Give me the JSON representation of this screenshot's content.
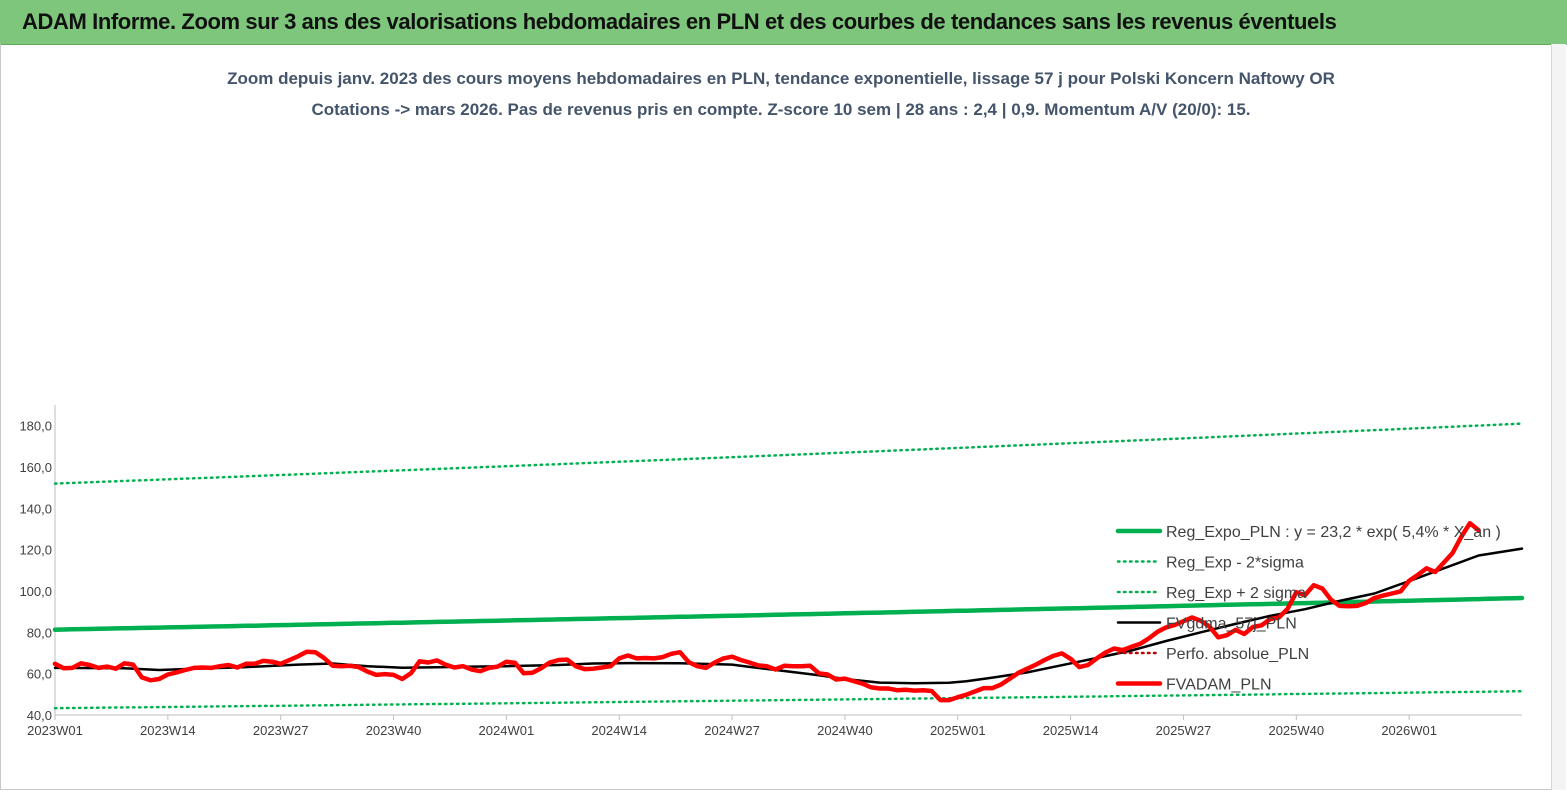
{
  "header": {
    "title": "ADAM Informe. Zoom sur 3 ans des valorisations hebdomadaires en PLN et des courbes de tendances sans les revenus éventuels"
  },
  "chart_data": {
    "type": "line",
    "title": "Zoom depuis janv. 2023 des cours moyens hebdomadaires en PLN,  tendance exponentielle, lissage 57 j pour Polski Koncern Naftowy OR",
    "subtitle": "Cotations -> mars 2026. Pas de revenus pris en compte. Z-score 10 sem  | 28 ans : 2,4  | 0,9. Momentum A/V (20/0): 15.",
    "xlabel": "",
    "ylabel": "",
    "ylim": [
      40,
      190
    ],
    "yticks": [
      40,
      60,
      80,
      100,
      120,
      140,
      160,
      180
    ],
    "ytick_labels": [
      "40,0",
      "60,0",
      "80,0",
      "100,0",
      "120,0",
      "140,0",
      "160,0",
      "180,0"
    ],
    "x_tick_labels": [
      "2023W01",
      "2023W14",
      "2023W27",
      "2023W40",
      "2024W01",
      "2024W14",
      "2024W27",
      "2024W40",
      "2025W01",
      "2025W14",
      "2025W27",
      "2025W40",
      "2026W01"
    ],
    "x_tick_week_index": [
      0,
      13,
      26,
      39,
      52,
      65,
      78,
      91,
      104,
      117,
      130,
      143,
      156
    ],
    "x_weeks_total": 169,
    "grid": false,
    "legend_position": "right",
    "series": [
      {
        "name": "Reg_Expo_PLN : y = 23,2 * exp( 5,4% *  X_an )",
        "color": "#00b050",
        "style": "solid-thick",
        "start": 81.3,
        "end": 96.6
      },
      {
        "name": "Reg_Exp - 2*sigma",
        "color": "#00b050",
        "style": "dotted",
        "start": 43.3,
        "end": 51.5
      },
      {
        "name": "Reg_Exp + 2 sigma",
        "color": "#00b050",
        "style": "dotted",
        "start": 152.0,
        "end": 181.0
      },
      {
        "name": "FVgdma_57j_PLN",
        "color": "#000000",
        "style": "solid",
        "points": [
          [
            0,
            62.8
          ],
          [
            8,
            62.6
          ],
          [
            12,
            61.8
          ],
          [
            16,
            62.4
          ],
          [
            22,
            63.2
          ],
          [
            28,
            64.4
          ],
          [
            32,
            64.9
          ],
          [
            36,
            63.6
          ],
          [
            40,
            62.9
          ],
          [
            44,
            63.1
          ],
          [
            48,
            63.4
          ],
          [
            52,
            63.6
          ],
          [
            58,
            64.2
          ],
          [
            62,
            64.9
          ],
          [
            66,
            65.1
          ],
          [
            72,
            65.0
          ],
          [
            78,
            64.4
          ],
          [
            80,
            63.3
          ],
          [
            84,
            61.3
          ],
          [
            88,
            59.2
          ],
          [
            91,
            57.4
          ],
          [
            95,
            55.7
          ],
          [
            99,
            55.4
          ],
          [
            103,
            55.6
          ],
          [
            105,
            56.3
          ],
          [
            108,
            58.1
          ],
          [
            112,
            60.6
          ],
          [
            116,
            64.1
          ],
          [
            120,
            67.6
          ],
          [
            124,
            71.2
          ],
          [
            128,
            75.8
          ],
          [
            132,
            80.0
          ],
          [
            136,
            84.1
          ],
          [
            140,
            88.0
          ],
          [
            144,
            91.2
          ],
          [
            148,
            95.2
          ],
          [
            152,
            98.8
          ],
          [
            156,
            104.8
          ],
          [
            160,
            111.0
          ],
          [
            164,
            117.2
          ],
          [
            169,
            120.5
          ]
        ]
      },
      {
        "name": "Perfo. absolue_PLN",
        "color": "#c00000",
        "style": "dotted",
        "points": []
      },
      {
        "name": "FVADAM_PLN",
        "color": "#ff0000",
        "style": "solid-thick",
        "points": [
          [
            0,
            64.8
          ],
          [
            1,
            62.6
          ],
          [
            2,
            62.8
          ],
          [
            3,
            65.0
          ],
          [
            4,
            64.2
          ],
          [
            5,
            62.8
          ],
          [
            6,
            63.4
          ],
          [
            7,
            62.4
          ],
          [
            8,
            65.0
          ],
          [
            9,
            64.4
          ],
          [
            10,
            58.2
          ],
          [
            11,
            56.8
          ],
          [
            12,
            57.4
          ],
          [
            13,
            59.6
          ],
          [
            14,
            60.6
          ],
          [
            15,
            61.8
          ],
          [
            16,
            62.8
          ],
          [
            17,
            63.0
          ],
          [
            18,
            62.8
          ],
          [
            19,
            63.6
          ],
          [
            20,
            64.2
          ],
          [
            21,
            63.0
          ],
          [
            22,
            64.8
          ],
          [
            23,
            64.8
          ],
          [
            24,
            66.2
          ],
          [
            25,
            65.8
          ],
          [
            26,
            64.8
          ],
          [
            27,
            66.6
          ],
          [
            28,
            68.4
          ],
          [
            29,
            70.6
          ],
          [
            30,
            70.4
          ],
          [
            31,
            67.6
          ],
          [
            32,
            63.8
          ],
          [
            33,
            63.6
          ],
          [
            34,
            63.8
          ],
          [
            35,
            63.2
          ],
          [
            36,
            61.0
          ],
          [
            37,
            59.4
          ],
          [
            38,
            59.8
          ],
          [
            39,
            59.4
          ],
          [
            40,
            57.4
          ],
          [
            41,
            60.2
          ],
          [
            42,
            66.0
          ],
          [
            43,
            65.4
          ],
          [
            44,
            66.4
          ],
          [
            45,
            64.4
          ],
          [
            46,
            63.0
          ],
          [
            47,
            63.6
          ],
          [
            48,
            62.0
          ],
          [
            49,
            61.2
          ],
          [
            50,
            62.8
          ],
          [
            51,
            63.4
          ],
          [
            52,
            65.8
          ],
          [
            53,
            65.2
          ],
          [
            54,
            60.2
          ],
          [
            55,
            60.4
          ],
          [
            56,
            62.6
          ],
          [
            57,
            65.4
          ],
          [
            58,
            66.6
          ],
          [
            59,
            66.8
          ],
          [
            60,
            63.6
          ],
          [
            61,
            62.2
          ],
          [
            62,
            62.4
          ],
          [
            63,
            63.0
          ],
          [
            64,
            63.6
          ],
          [
            65,
            67.4
          ],
          [
            66,
            68.8
          ],
          [
            67,
            67.4
          ],
          [
            68,
            67.6
          ],
          [
            69,
            67.4
          ],
          [
            70,
            68.0
          ],
          [
            71,
            69.6
          ],
          [
            72,
            70.4
          ],
          [
            73,
            65.6
          ],
          [
            74,
            63.6
          ],
          [
            75,
            62.8
          ],
          [
            76,
            65.4
          ],
          [
            77,
            67.4
          ],
          [
            78,
            68.2
          ],
          [
            79,
            66.6
          ],
          [
            80,
            65.4
          ],
          [
            81,
            64.0
          ],
          [
            82,
            63.6
          ],
          [
            83,
            62.0
          ],
          [
            84,
            63.8
          ],
          [
            85,
            63.6
          ],
          [
            86,
            63.6
          ],
          [
            87,
            63.8
          ],
          [
            88,
            60.2
          ],
          [
            89,
            59.6
          ],
          [
            90,
            57.2
          ],
          [
            91,
            57.6
          ],
          [
            92,
            56.4
          ],
          [
            93,
            55.2
          ],
          [
            94,
            53.4
          ],
          [
            95,
            52.8
          ],
          [
            96,
            52.8
          ],
          [
            97,
            52.0
          ],
          [
            98,
            52.2
          ],
          [
            99,
            51.8
          ],
          [
            100,
            52.0
          ],
          [
            101,
            51.6
          ],
          [
            102,
            47.2
          ],
          [
            103,
            47.2
          ],
          [
            104,
            48.6
          ],
          [
            105,
            49.8
          ],
          [
            106,
            51.4
          ],
          [
            107,
            53.0
          ],
          [
            108,
            53.0
          ],
          [
            109,
            54.8
          ],
          [
            110,
            57.6
          ],
          [
            111,
            60.4
          ],
          [
            112,
            62.4
          ],
          [
            113,
            64.4
          ],
          [
            114,
            66.6
          ],
          [
            115,
            68.6
          ],
          [
            116,
            69.8
          ],
          [
            117,
            67.2
          ],
          [
            118,
            63.2
          ],
          [
            119,
            64.2
          ],
          [
            120,
            67.4
          ],
          [
            121,
            70.2
          ],
          [
            122,
            72.2
          ],
          [
            123,
            71.4
          ],
          [
            124,
            73.0
          ],
          [
            125,
            74.4
          ],
          [
            126,
            77.0
          ],
          [
            127,
            80.2
          ],
          [
            128,
            82.4
          ],
          [
            129,
            83.6
          ],
          [
            130,
            85.4
          ],
          [
            131,
            87.2
          ],
          [
            132,
            85.6
          ],
          [
            133,
            82.8
          ],
          [
            134,
            77.6
          ],
          [
            135,
            78.6
          ],
          [
            136,
            81.2
          ],
          [
            137,
            79.2
          ],
          [
            138,
            82.6
          ],
          [
            139,
            83.4
          ],
          [
            140,
            86.4
          ],
          [
            141,
            87.2
          ],
          [
            142,
            91.4
          ],
          [
            143,
            99.4
          ],
          [
            144,
            98.0
          ],
          [
            145,
            102.8
          ],
          [
            146,
            101.2
          ],
          [
            147,
            95.8
          ],
          [
            148,
            92.8
          ],
          [
            149,
            92.6
          ],
          [
            150,
            92.8
          ],
          [
            151,
            94.2
          ],
          [
            152,
            96.6
          ],
          [
            153,
            97.8
          ],
          [
            154,
            98.8
          ],
          [
            155,
            99.8
          ],
          [
            156,
            105.0
          ],
          [
            157,
            107.8
          ],
          [
            158,
            111.0
          ],
          [
            159,
            109.2
          ],
          [
            160,
            113.8
          ],
          [
            161,
            118.4
          ],
          [
            162,
            126.2
          ],
          [
            163,
            132.8
          ],
          [
            164,
            129.4
          ]
        ]
      }
    ]
  }
}
